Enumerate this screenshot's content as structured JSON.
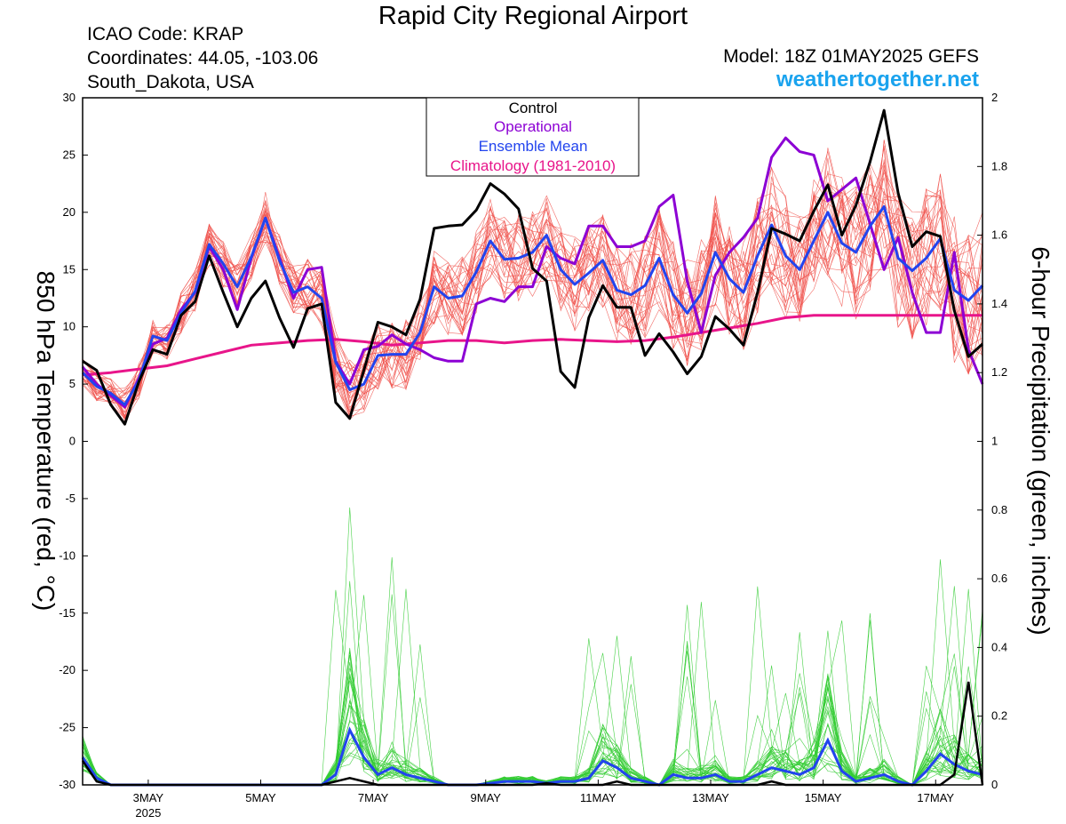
{
  "header": {
    "title": "Rapid City Regional Airport",
    "icao": "ICAO Code: KRAP",
    "coordinates": "Coordinates: 44.05, -103.06",
    "location": "South_Dakota, USA",
    "model": "Model: 18Z 01MAY2025 GEFS",
    "site": "weathertogether.net"
  },
  "chart_data": {
    "type": "line",
    "title": "Rapid City Regional Airport",
    "ylabel_left": "850 hPa Temperature (red, °C)",
    "ylabel_right": "6-hour Precipitation (green, inches)",
    "x_start_day": 1.833,
    "x_end_day": 17.833,
    "x_step_days": 0.25,
    "ylim_left": [
      -30,
      30
    ],
    "ylim_right": [
      0,
      2
    ],
    "yticks_left": [
      "30",
      "25",
      "20",
      "15",
      "10",
      "5",
      "0",
      "-5",
      "-10",
      "-15",
      "-20",
      "-25",
      "-30"
    ],
    "yticks_right": [
      "2",
      "1.8",
      "1.6",
      "1.4",
      "1.2",
      "1",
      "0.8",
      "0.6",
      "0.4",
      "0.2",
      "0"
    ],
    "xticks": [
      {
        "day": 3,
        "label": "3MAY",
        "sub": "2025"
      },
      {
        "day": 5,
        "label": "5MAY",
        "sub": ""
      },
      {
        "day": 7,
        "label": "7MAY",
        "sub": ""
      },
      {
        "day": 9,
        "label": "9MAY",
        "sub": ""
      },
      {
        "day": 11,
        "label": "11MAY",
        "sub": ""
      },
      {
        "day": 13,
        "label": "13MAY",
        "sub": ""
      },
      {
        "day": 15,
        "label": "15MAY",
        "sub": ""
      },
      {
        "day": 17,
        "label": "17MAY",
        "sub": ""
      }
    ],
    "legend": {
      "entries": [
        {
          "label": "Control",
          "color": "#000000"
        },
        {
          "label": "Operational",
          "color": "#8c00d4"
        },
        {
          "label": "Ensemble Mean",
          "color": "#2244ee"
        },
        {
          "label": "Climatology (1981-2010)",
          "color": "#e8158a"
        }
      ]
    },
    "colors": {
      "members_temp": "#f0504a",
      "members_precip": "#33cc33",
      "control": "#000000",
      "operational": "#8c00d4",
      "mean": "#2244ee",
      "climatology": "#e8158a"
    },
    "temperature": {
      "control": [
        7,
        6.2,
        3.2,
        1.5,
        5.2,
        8,
        7.6,
        11,
        12.2,
        16.2,
        13,
        10,
        12.5,
        14,
        10.8,
        8.2,
        11.6,
        12,
        3.4,
        2,
        6.2,
        10.4,
        10,
        9.3,
        12.4,
        18.6,
        18.8,
        18.9,
        20.2,
        22.5,
        21.6,
        20.3,
        15.1,
        14,
        6.1,
        4.7,
        10.8,
        13.6,
        11.7,
        11.7,
        7.5,
        9.4,
        7.8,
        5.9,
        7.4,
        10.9,
        9.8,
        8.4,
        13,
        18.6,
        18.1,
        17.5,
        20.1,
        22.4,
        18,
        20.6,
        24.4,
        28.9,
        21.7,
        17,
        18.3,
        17.9,
        11.4,
        7.4,
        8.5
      ],
      "operational": [
        6.5,
        5,
        4,
        3,
        5.5,
        8.5,
        9,
        11.5,
        13,
        17,
        15,
        11.5,
        16,
        19.5,
        16,
        12.5,
        15,
        15.2,
        7,
        5,
        8,
        8.3,
        9.3,
        8.5,
        8,
        7.3,
        7,
        7,
        12,
        12.5,
        12.2,
        13.5,
        13.5,
        17,
        16,
        15.5,
        18.8,
        18.8,
        17,
        17,
        17.5,
        20.5,
        21.5,
        14,
        9.5,
        14.5,
        16.5,
        17.8,
        19.5,
        24.8,
        26.5,
        25.3,
        25,
        21,
        22,
        23,
        19,
        15,
        17.8,
        13,
        9.5,
        9.5,
        16.5,
        8,
        5
      ],
      "mean": [
        6,
        4.8,
        4.2,
        3.2,
        5.3,
        9.2,
        8.8,
        11.2,
        13.1,
        17.2,
        15.5,
        13.5,
        16.1,
        19.5,
        15.8,
        13,
        13.5,
        12.5,
        6.9,
        4.5,
        5,
        7.5,
        7.6,
        7.6,
        9.5,
        13.5,
        12.5,
        12.7,
        14.8,
        17.5,
        15.9,
        16,
        16.5,
        18,
        15,
        13.7,
        14.7,
        15.8,
        13.2,
        12.8,
        13.6,
        16,
        12.8,
        11.2,
        12.9,
        16.5,
        14.2,
        13,
        16.2,
        18.9,
        16.2,
        15,
        17.5,
        20,
        17.3,
        16.5,
        18.8,
        20.5,
        16,
        14.9,
        16,
        17.7,
        13.2,
        12.3,
        13.6
      ],
      "climatology": [
        5.8,
        6,
        6.3,
        6.6,
        7.2,
        7.8,
        8.4,
        8.6,
        8.8,
        8.9,
        8.7,
        8.4,
        8.6,
        8.8,
        8.8,
        8.6,
        8.8,
        8.9,
        8.8,
        8.7,
        8.8,
        9.1,
        9.5,
        9.9,
        10.3,
        10.8,
        11,
        11,
        11,
        11,
        11
      ],
      "climatology_days": [
        1.833,
        2.333,
        2.833,
        3.333,
        3.833,
        4.333,
        4.833,
        5.333,
        5.833,
        6.333,
        6.833,
        7.333,
        7.833,
        8.333,
        8.833,
        9.333,
        9.833,
        10.333,
        10.833,
        11.333,
        11.833,
        12.333,
        12.833,
        13.333,
        13.833,
        14.333,
        14.833,
        15.333,
        15.833,
        16.333,
        17.833
      ]
    },
    "precipitation": {
      "control": [
        0.07,
        0.01,
        0,
        0,
        0,
        0,
        0,
        0,
        0,
        0,
        0,
        0,
        0,
        0,
        0,
        0,
        0,
        0,
        0.01,
        0.02,
        0.01,
        0,
        0,
        0,
        0,
        0,
        0,
        0,
        0,
        0,
        0,
        0,
        0,
        0.005,
        0,
        0,
        0,
        0,
        0.01,
        0,
        0,
        0,
        0,
        0,
        0,
        0,
        0,
        0,
        0,
        0.01,
        0,
        0,
        0,
        0,
        0,
        0,
        0,
        0,
        0,
        0,
        0,
        0,
        0.03,
        0.3,
        0
      ],
      "mean": [
        0.08,
        0.02,
        0,
        0,
        0,
        0,
        0,
        0,
        0,
        0,
        0,
        0,
        0,
        0,
        0,
        0,
        0,
        0,
        0.03,
        0.16,
        0.08,
        0.03,
        0.05,
        0.03,
        0.02,
        0.01,
        0,
        0,
        0,
        0.005,
        0.01,
        0.01,
        0.01,
        0.005,
        0.01,
        0.01,
        0.02,
        0.07,
        0.05,
        0.02,
        0.01,
        0,
        0.03,
        0.02,
        0.02,
        0.03,
        0.01,
        0.01,
        0.03,
        0.05,
        0.04,
        0.03,
        0.05,
        0.13,
        0.04,
        0.01,
        0.02,
        0.03,
        0.01,
        0,
        0.04,
        0.09,
        0.06,
        0.04,
        0.03
      ]
    }
  }
}
